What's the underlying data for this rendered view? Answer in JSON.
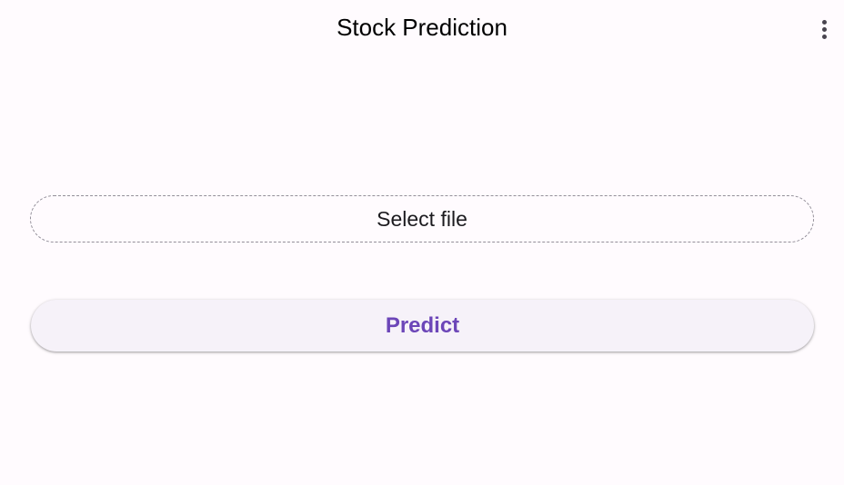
{
  "app_bar": {
    "title": "Stock Prediction",
    "overflow_icon": "more-vert-icon"
  },
  "main": {
    "select_file_label": "Select file",
    "predict_label": "Predict"
  },
  "colors": {
    "background": "#fffbfe",
    "accent": "#6c46b8",
    "button_surface": "#f6f2f9",
    "outline": "#938f99"
  }
}
